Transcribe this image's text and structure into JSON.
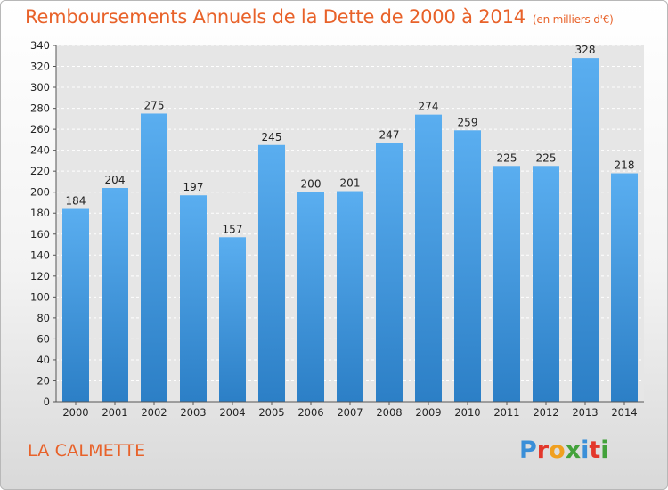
{
  "title": "Remboursements Annuels de la Dette de 2000 à 2014",
  "subtitle": "(en milliers d'€)",
  "commune": "LA CALMETTE",
  "logo": {
    "letters": [
      "P",
      "r",
      "o",
      "x",
      "i",
      "t",
      "i"
    ],
    "colors": [
      "#3a8fd8",
      "#e3372b",
      "#f0a020",
      "#43a23b",
      "#3a8fd8",
      "#e3372b",
      "#43a23b"
    ]
  },
  "colors": {
    "title": "#e8622a",
    "bar_top": "#5aaef0",
    "bar_bottom": "#2c7fc6"
  },
  "chart_data": {
    "type": "bar",
    "title": "Remboursements Annuels de la Dette de 2000 à 2014",
    "subtitle": "(en milliers d'€)",
    "categories": [
      "2000",
      "2001",
      "2002",
      "2003",
      "2004",
      "2005",
      "2006",
      "2007",
      "2008",
      "2009",
      "2010",
      "2011",
      "2012",
      "2013",
      "2014"
    ],
    "values": [
      184,
      204,
      275,
      197,
      157,
      245,
      200,
      201,
      247,
      274,
      259,
      225,
      225,
      328,
      218
    ],
    "xlabel": "",
    "ylabel": "",
    "ylim": [
      0,
      340
    ],
    "yticks": [
      0,
      20,
      40,
      60,
      80,
      100,
      120,
      140,
      160,
      180,
      200,
      220,
      240,
      260,
      280,
      300,
      320,
      340
    ],
    "grid": true,
    "data_labels": true
  }
}
